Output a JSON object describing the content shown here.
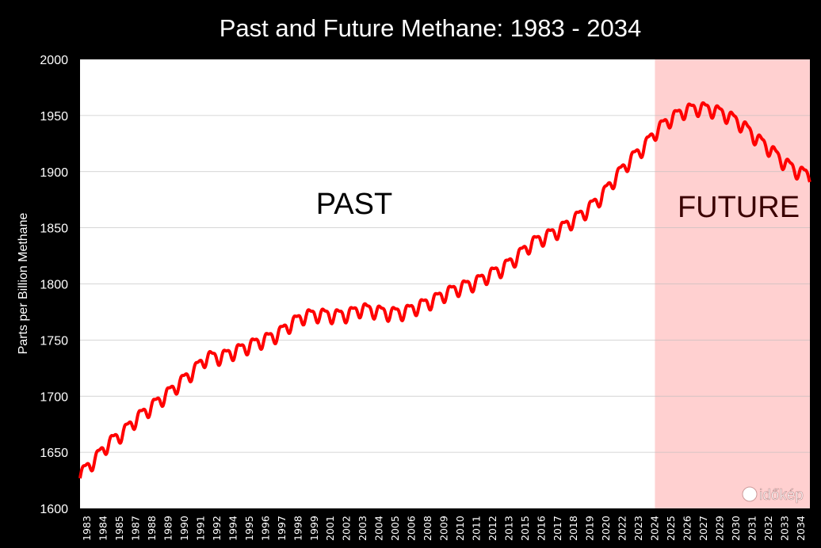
{
  "chart_data": {
    "type": "line",
    "title": "Past and Future Methane: 1983 - 2034",
    "xlabel": "",
    "ylabel": "Parts per Billion Methane",
    "ylim": [
      1600,
      2000
    ],
    "yticks": [
      1600,
      1650,
      1700,
      1750,
      1800,
      1850,
      1900,
      1950,
      2000
    ],
    "xlim": [
      1983,
      2034.8
    ],
    "xtick_labels": [
      "1983",
      "1984",
      "1985",
      "1987",
      "1988",
      "1989",
      "1990",
      "1991",
      "1992",
      "1994",
      "1995",
      "1996",
      "1997",
      "1998",
      "1999",
      "2001",
      "2002",
      "2003",
      "2004",
      "2005",
      "2006",
      "2008",
      "2009",
      "2010",
      "2011",
      "2012",
      "2013",
      "2015",
      "2016",
      "2017",
      "2018",
      "2019",
      "2020",
      "2022",
      "2023",
      "2024",
      "2025",
      "2026",
      "2027",
      "2029",
      "2030",
      "2031",
      "2032",
      "2033",
      "2034"
    ],
    "grid": true,
    "line_color": "#ff0000",
    "future_region": {
      "start": 2023.8,
      "end": 2034.8,
      "color": "#ffd0d0"
    },
    "annotations": [
      {
        "text": "PAST",
        "color": "#000000"
      },
      {
        "text": "FUTURE",
        "color": "#3a0000"
      }
    ],
    "seasonal_amplitude_ppb": 7,
    "series": [
      {
        "x": [
          1983,
          1984,
          1985,
          1986,
          1987,
          1988,
          1989,
          1990,
          1991,
          1992,
          1993,
          1994,
          1995,
          1996,
          1997,
          1998,
          1999,
          2000,
          2001,
          2002,
          2003,
          2004,
          2005,
          2006,
          2007,
          2008,
          2009,
          2010,
          2011,
          2012,
          2013,
          2014,
          2015,
          2016,
          2017,
          2018,
          2019,
          2020,
          2021,
          2022,
          2023,
          2024,
          2025,
          2026,
          2027,
          2028,
          2029,
          2030,
          2031,
          2032,
          2033,
          2034,
          2034.8
        ],
        "y": [
          1630,
          1643,
          1658,
          1667,
          1680,
          1690,
          1700,
          1711,
          1722,
          1735,
          1735,
          1740,
          1745,
          1750,
          1755,
          1765,
          1772,
          1773,
          1772,
          1773,
          1778,
          1776,
          1774,
          1775,
          1780,
          1785,
          1792,
          1797,
          1801,
          1808,
          1814,
          1824,
          1836,
          1842,
          1848,
          1857,
          1866,
          1878,
          1895,
          1910,
          1922,
          1938,
          1948,
          1955,
          1957,
          1955,
          1950,
          1942,
          1930,
          1920,
          1908,
          1900,
          1897
        ]
      }
    ]
  },
  "watermark": "időkép"
}
